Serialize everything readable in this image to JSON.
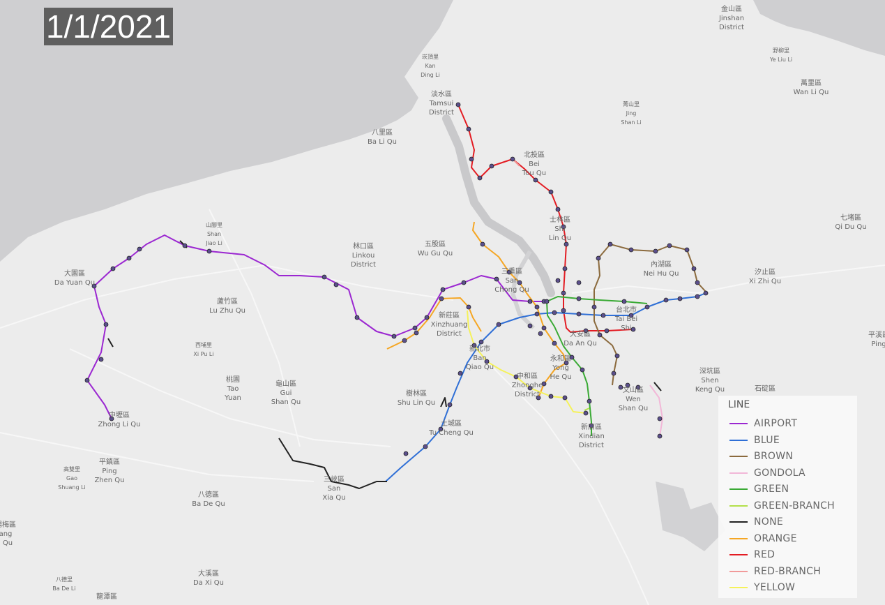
{
  "date_label": "1/1/2021",
  "legend": {
    "title": "LINE",
    "items": [
      {
        "label": "AIRPORT",
        "color": "#9b27d1"
      },
      {
        "label": "BLUE",
        "color": "#2f6fd6"
      },
      {
        "label": "BROWN",
        "color": "#8b6a3d"
      },
      {
        "label": "GONDOLA",
        "color": "#f2b8d8"
      },
      {
        "label": "GREEN",
        "color": "#3aaa35"
      },
      {
        "label": "GREEN-BRANCH",
        "color": "#b3e04a"
      },
      {
        "label": "NONE",
        "color": "#222222"
      },
      {
        "label": "ORANGE",
        "color": "#f5a623"
      },
      {
        "label": "RED",
        "color": "#e31c23"
      },
      {
        "label": "RED-BRANCH",
        "color": "#f19a9a"
      },
      {
        "label": "YELLOW",
        "color": "#f5f25a"
      }
    ]
  },
  "place_labels": [
    {
      "zh": "金山區",
      "en1": "Jinshan",
      "en2": "District"
    },
    {
      "zh": "崁頂里",
      "en1": "Kan",
      "en2": "Ding Li"
    },
    {
      "zh": "野柳里",
      "en1": "Ye Liu Li",
      "en2": ""
    },
    {
      "zh": "萬里區",
      "en1": "Wan Li Qu",
      "en2": ""
    },
    {
      "zh": "淡水區",
      "en1": "Tamsui",
      "en2": "District"
    },
    {
      "zh": "菁山里",
      "en1": "Jing",
      "en2": "Shan Li"
    },
    {
      "zh": "八里區",
      "en1": "Ba Li Qu",
      "en2": ""
    },
    {
      "zh": "北投區",
      "en1": "Bei",
      "en2": "Tou Qu"
    },
    {
      "zh": "七堵區",
      "en1": "Qi Du Qu",
      "en2": ""
    },
    {
      "zh": "山腳里",
      "en1": "Shan",
      "en2": "Jiao Li"
    },
    {
      "zh": "士林區",
      "en1": "Shi",
      "en2": "Lin Qu"
    },
    {
      "zh": "林口區",
      "en1": "Linkou",
      "en2": "District"
    },
    {
      "zh": "五股區",
      "en1": "Wu Gu Qu",
      "en2": ""
    },
    {
      "zh": "內湖區",
      "en1": "Nei Hu Qu",
      "en2": ""
    },
    {
      "zh": "汐止區",
      "en1": "Xi Zhi Qu",
      "en2": ""
    },
    {
      "zh": "大園區",
      "en1": "Da Yuan Qu",
      "en2": ""
    },
    {
      "zh": "三重區",
      "en1": "San",
      "en2": "Chong Qu"
    },
    {
      "zh": "蘆竹區",
      "en1": "Lu Zhu Qu",
      "en2": ""
    },
    {
      "zh": "台北市",
      "en1": "Tai Bei",
      "en2": "Shi"
    },
    {
      "zh": "新莊區",
      "en1": "Xinzhuang",
      "en2": "District"
    },
    {
      "zh": "大安區",
      "en1": "Da An Qu",
      "en2": ""
    },
    {
      "zh": "西埔里",
      "en1": "Xi Pu Li",
      "en2": ""
    },
    {
      "zh": "新北市",
      "en1": "Ban",
      "en2": "Qiao Qu"
    },
    {
      "zh": "永和區",
      "en1": "Yong",
      "en2": "He Qu"
    },
    {
      "zh": "深坑區",
      "en1": "Shen",
      "en2": "Keng Qu"
    },
    {
      "zh": "桃園",
      "en1": "Tao",
      "en2": "Yuan"
    },
    {
      "zh": "龜山區",
      "en1": "Gui",
      "en2": "Shan Qu"
    },
    {
      "zh": "中和區",
      "en1": "Zhonghe",
      "en2": "District"
    },
    {
      "zh": "文山區",
      "en1": "Wen",
      "en2": "Shan Qu"
    },
    {
      "zh": "石碇區",
      "en1": "",
      "en2": ""
    },
    {
      "zh": "樹林區",
      "en1": "Shu Lin Qu",
      "en2": ""
    },
    {
      "zh": "中壢區",
      "en1": "Zhong Li Qu",
      "en2": ""
    },
    {
      "zh": "土城區",
      "en1": "Tu Cheng Qu",
      "en2": ""
    },
    {
      "zh": "新店區",
      "en1": "Xindian",
      "en2": "District"
    },
    {
      "zh": "平鎮區",
      "en1": "Ping",
      "en2": "Zhen Qu"
    },
    {
      "zh": "高雙里",
      "en1": "Gao",
      "en2": "Shuang Li"
    },
    {
      "zh": "三峽區",
      "en1": "San",
      "en2": "Xia Qu"
    },
    {
      "zh": "八德區",
      "en1": "Ba De Qu",
      "en2": ""
    },
    {
      "zh": "大溪區",
      "en1": "Da Xi Qu",
      "en2": ""
    },
    {
      "zh": "八德里",
      "en1": "Ba De Li",
      "en2": ""
    },
    {
      "zh": "龍潭區",
      "en1": "",
      "en2": ""
    },
    {
      "zh": "平溪區",
      "en1": "Ping",
      "en2": ""
    },
    {
      "zh": "楊梅區",
      "en1": "ang",
      "en2": "i Qu"
    }
  ]
}
